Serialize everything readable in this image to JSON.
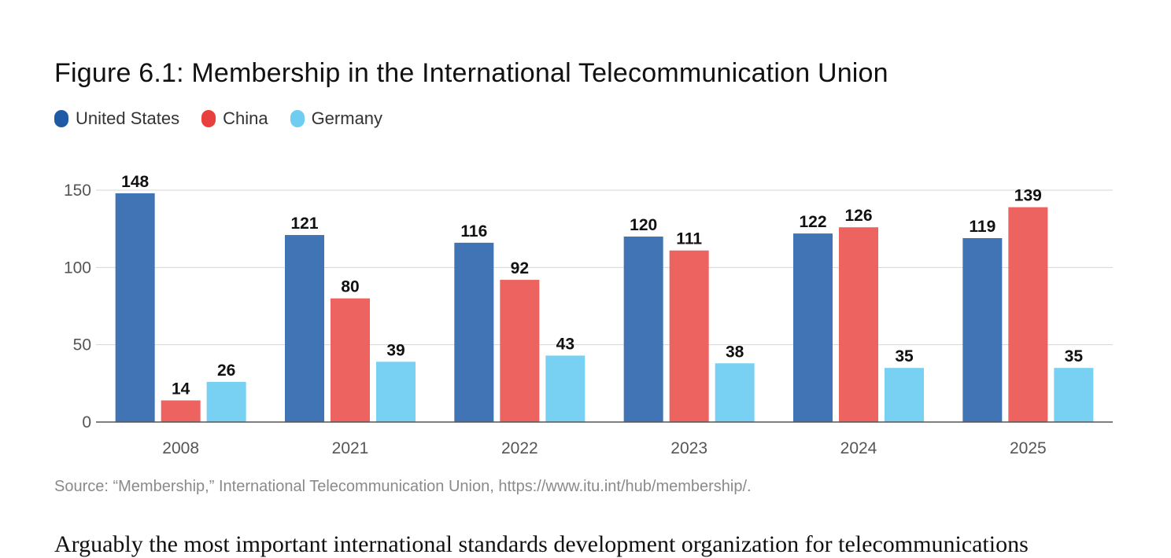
{
  "page": {
    "source": "Source: “Membership,” International Telecommunication Union, https://www.itu.int/hub/membership/.",
    "body_text_fragment": "Arguably the most important international standards development organization for telecommunications"
  },
  "chart_data": {
    "type": "bar",
    "title": "Figure 6.1: Membership in the International Telecommunication Union",
    "xlabel": "",
    "ylabel": "",
    "categories": [
      "2008",
      "2021",
      "2022",
      "2023",
      "2024",
      "2025"
    ],
    "series": [
      {
        "name": "United States",
        "color": "#4174b5",
        "legend_color": "#1f5aa6",
        "values": [
          148,
          121,
          116,
          120,
          122,
          119
        ]
      },
      {
        "name": "China",
        "color": "#ec6360",
        "legend_color": "#e8403d",
        "values": [
          14,
          80,
          92,
          111,
          126,
          139
        ]
      },
      {
        "name": "Germany",
        "color": "#78d1f3",
        "legend_color": "#6fcdf2",
        "values": [
          26,
          39,
          43,
          38,
          35,
          35
        ]
      }
    ],
    "ylim": [
      0,
      150
    ],
    "yticks": [
      0,
      50,
      100,
      150
    ],
    "grid": true,
    "legend_position": "top-left",
    "data_labels": true
  }
}
